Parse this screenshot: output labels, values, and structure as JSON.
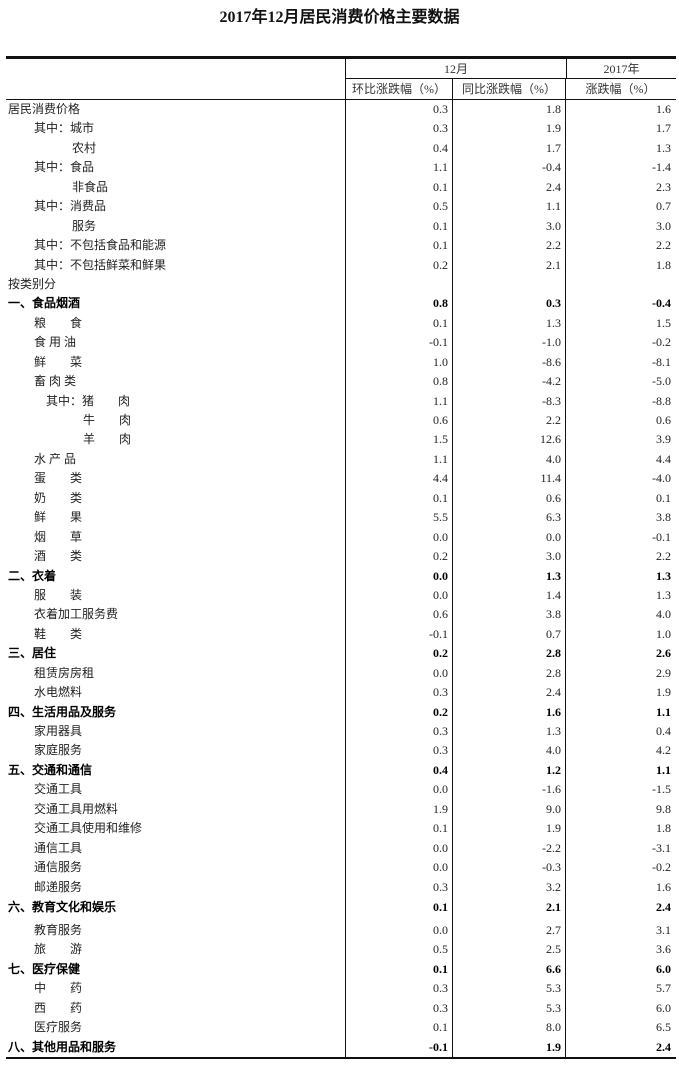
{
  "title": "2017年12月居民消费价格主要数据",
  "header": {
    "group_month": "12月",
    "group_year": "2017年",
    "col_mom": "环比涨跌幅（%）",
    "col_yoy": "同比涨跌幅（%）",
    "col_year": "涨跌幅（%）"
  },
  "rows": [
    {
      "label": "居民消费价格",
      "indent": 0,
      "bold": false,
      "mom": "0.3",
      "yoy": "1.8",
      "year": "1.6"
    },
    {
      "label": "其中：城市",
      "indent": 1,
      "bold": false,
      "mom": "0.3",
      "yoy": "1.9",
      "year": "1.7"
    },
    {
      "label": "农村",
      "indent": 2,
      "bold": false,
      "mom": "0.4",
      "yoy": "1.7",
      "year": "1.3"
    },
    {
      "label": "其中：食品",
      "indent": 1,
      "bold": false,
      "mom": "1.1",
      "yoy": "-0.4",
      "year": "-1.4"
    },
    {
      "label": "非食品",
      "indent": 2,
      "bold": false,
      "mom": "0.1",
      "yoy": "2.4",
      "year": "2.3"
    },
    {
      "label": "其中：消费品",
      "indent": 1,
      "bold": false,
      "mom": "0.5",
      "yoy": "1.1",
      "year": "0.7"
    },
    {
      "label": "服务",
      "indent": 2,
      "bold": false,
      "mom": "0.1",
      "yoy": "3.0",
      "year": "3.0"
    },
    {
      "label": "其中：不包括食品和能源",
      "indent": 1,
      "bold": false,
      "mom": "0.1",
      "yoy": "2.2",
      "year": "2.2"
    },
    {
      "label": "其中：不包括鲜菜和鲜果",
      "indent": 1,
      "bold": false,
      "mom": "0.2",
      "yoy": "2.1",
      "year": "1.8"
    },
    {
      "label": "按类别分",
      "indent": 0,
      "bold": false,
      "mom": "",
      "yoy": "",
      "year": ""
    },
    {
      "label": "一、食品烟酒",
      "indent": 0,
      "bold": true,
      "mom": "0.8",
      "yoy": "0.3",
      "year": "-0.4"
    },
    {
      "label": "粮　　食",
      "indent": 1,
      "bold": false,
      "mom": "0.1",
      "yoy": "1.3",
      "year": "1.5"
    },
    {
      "label": "食 用 油",
      "indent": 1,
      "bold": false,
      "mom": "-0.1",
      "yoy": "-1.0",
      "year": "-0.2"
    },
    {
      "label": "鲜　　菜",
      "indent": 1,
      "bold": false,
      "mom": "1.0",
      "yoy": "-8.6",
      "year": "-8.1"
    },
    {
      "label": "畜 肉 类",
      "indent": 1,
      "bold": false,
      "mom": "0.8",
      "yoy": "-4.2",
      "year": "-5.0"
    },
    {
      "label": "其中：猪　　肉",
      "indent": 3,
      "bold": false,
      "mom": "1.1",
      "yoy": "-8.3",
      "year": "-8.8"
    },
    {
      "label": "牛　　肉",
      "indent": 4,
      "bold": false,
      "mom": "0.6",
      "yoy": "2.2",
      "year": "0.6"
    },
    {
      "label": "羊　　肉",
      "indent": 4,
      "bold": false,
      "mom": "1.5",
      "yoy": "12.6",
      "year": "3.9"
    },
    {
      "label": "水 产 品",
      "indent": 1,
      "bold": false,
      "mom": "1.1",
      "yoy": "4.0",
      "year": "4.4"
    },
    {
      "label": "蛋　　类",
      "indent": 1,
      "bold": false,
      "mom": "4.4",
      "yoy": "11.4",
      "year": "-4.0"
    },
    {
      "label": "奶　　类",
      "indent": 1,
      "bold": false,
      "mom": "0.1",
      "yoy": "0.6",
      "year": "0.1"
    },
    {
      "label": "鲜　　果",
      "indent": 1,
      "bold": false,
      "mom": "5.5",
      "yoy": "6.3",
      "year": "3.8"
    },
    {
      "label": "烟　　草",
      "indent": 1,
      "bold": false,
      "mom": "0.0",
      "yoy": "0.0",
      "year": "-0.1"
    },
    {
      "label": "酒　　类",
      "indent": 1,
      "bold": false,
      "mom": "0.2",
      "yoy": "3.0",
      "year": "2.2"
    },
    {
      "label": "二、衣着",
      "indent": 0,
      "bold": true,
      "mom": "0.0",
      "yoy": "1.3",
      "year": "1.3"
    },
    {
      "label": "服　　装",
      "indent": 1,
      "bold": false,
      "mom": "0.0",
      "yoy": "1.4",
      "year": "1.3"
    },
    {
      "label": "衣着加工服务费",
      "indent": 1,
      "bold": false,
      "mom": "0.6",
      "yoy": "3.8",
      "year": "4.0"
    },
    {
      "label": "鞋　　类",
      "indent": 1,
      "bold": false,
      "mom": "-0.1",
      "yoy": "0.7",
      "year": "1.0"
    },
    {
      "label": "三、居住",
      "indent": 0,
      "bold": true,
      "mom": "0.2",
      "yoy": "2.8",
      "year": "2.6"
    },
    {
      "label": "租赁房房租",
      "indent": 1,
      "bold": false,
      "mom": "0.0",
      "yoy": "2.8",
      "year": "2.9"
    },
    {
      "label": "水电燃料",
      "indent": 1,
      "bold": false,
      "mom": "0.3",
      "yoy": "2.4",
      "year": "1.9"
    },
    {
      "label": "四、生活用品及服务",
      "indent": 0,
      "bold": true,
      "mom": "0.2",
      "yoy": "1.6",
      "year": "1.1"
    },
    {
      "label": "家用器具",
      "indent": 1,
      "bold": false,
      "mom": "0.3",
      "yoy": "1.3",
      "year": "0.4"
    },
    {
      "label": "家庭服务",
      "indent": 1,
      "bold": false,
      "mom": "0.3",
      "yoy": "4.0",
      "year": "4.2"
    },
    {
      "label": "五、交通和通信",
      "indent": 0,
      "bold": true,
      "mom": "0.4",
      "yoy": "1.2",
      "year": "1.1"
    },
    {
      "label": "交通工具",
      "indent": 1,
      "bold": false,
      "mom": "0.0",
      "yoy": "-1.6",
      "year": "-1.5"
    },
    {
      "label": "交通工具用燃料",
      "indent": 1,
      "bold": false,
      "mom": "1.9",
      "yoy": "9.0",
      "year": "9.8"
    },
    {
      "label": "交通工具使用和维修",
      "indent": 1,
      "bold": false,
      "mom": "0.1",
      "yoy": "1.9",
      "year": "1.8"
    },
    {
      "label": "通信工具",
      "indent": 1,
      "bold": false,
      "mom": "0.0",
      "yoy": "-2.2",
      "year": "-3.1"
    },
    {
      "label": "通信服务",
      "indent": 1,
      "bold": false,
      "mom": "0.0",
      "yoy": "-0.3",
      "year": "-0.2"
    },
    {
      "label": "邮递服务",
      "indent": 1,
      "bold": false,
      "mom": "0.3",
      "yoy": "3.2",
      "year": "1.6"
    },
    {
      "label": "六、教育文化和娱乐",
      "indent": 0,
      "bold": true,
      "gap": true,
      "mom": "0.1",
      "yoy": "2.1",
      "year": "2.4"
    },
    {
      "label": "教育服务",
      "indent": 1,
      "bold": false,
      "mom": "0.0",
      "yoy": "2.7",
      "year": "3.1"
    },
    {
      "label": "旅　　游",
      "indent": 1,
      "bold": false,
      "mom": "0.5",
      "yoy": "2.5",
      "year": "3.6"
    },
    {
      "label": "七、医疗保健",
      "indent": 0,
      "bold": true,
      "mom": "0.1",
      "yoy": "6.6",
      "year": "6.0"
    },
    {
      "label": "中　　药",
      "indent": 1,
      "bold": false,
      "mom": "0.3",
      "yoy": "5.3",
      "year": "5.7"
    },
    {
      "label": "西　　药",
      "indent": 1,
      "bold": false,
      "mom": "0.3",
      "yoy": "5.3",
      "year": "6.0"
    },
    {
      "label": "医疗服务",
      "indent": 1,
      "bold": false,
      "mom": "0.1",
      "yoy": "8.0",
      "year": "6.5"
    },
    {
      "label": "八、其他用品和服务",
      "indent": 0,
      "bold": true,
      "mom": "-0.1",
      "yoy": "1.9",
      "year": "2.4"
    }
  ]
}
